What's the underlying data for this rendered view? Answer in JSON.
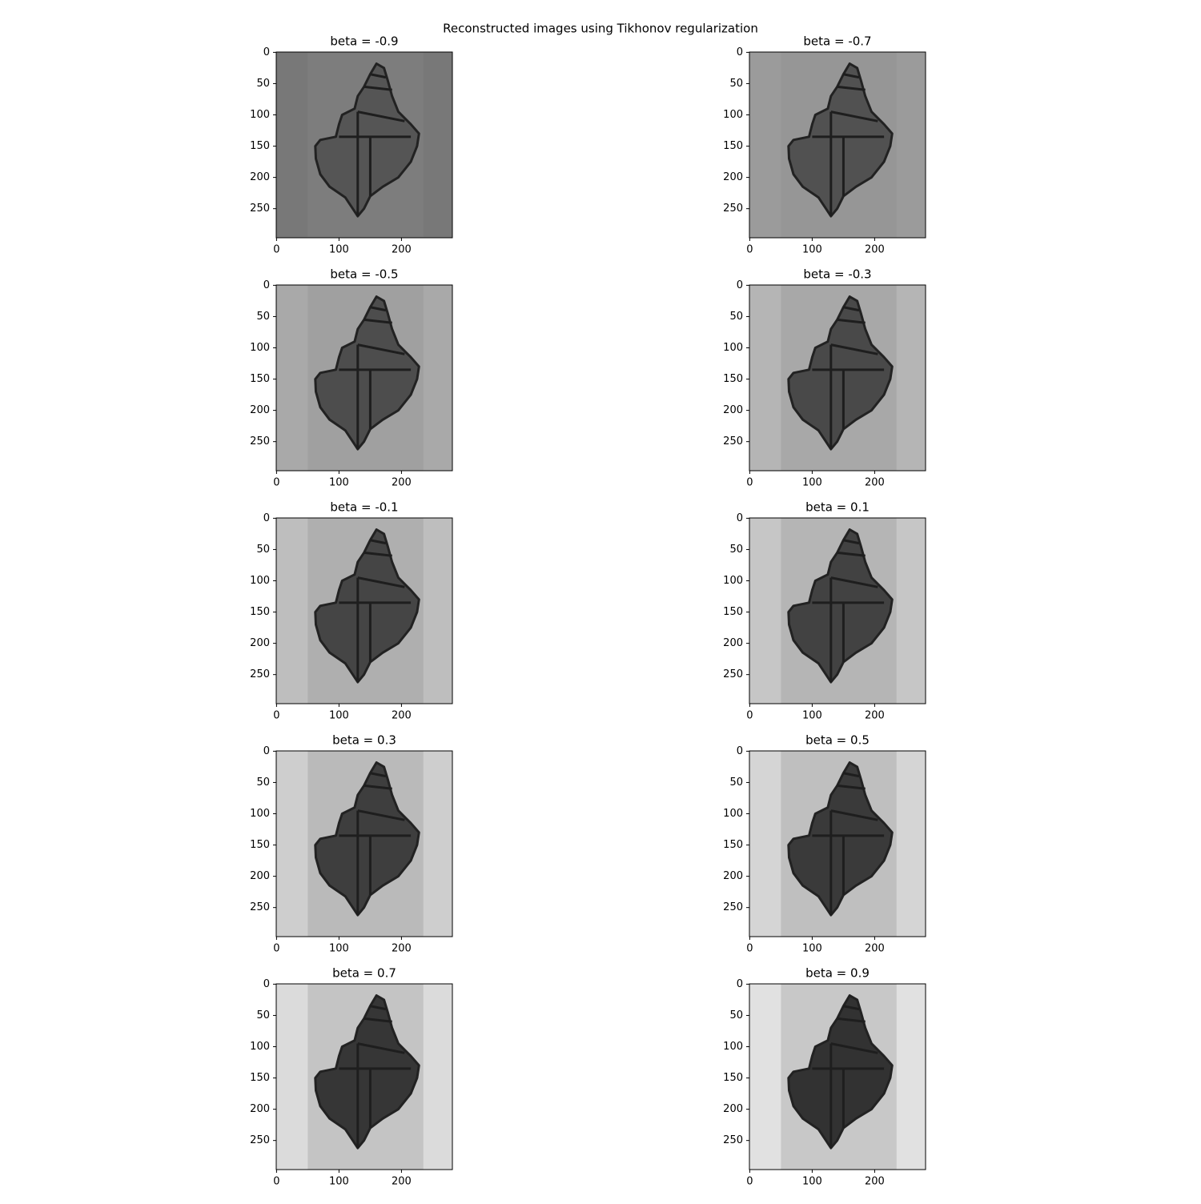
{
  "chart_data": {
    "type": "image",
    "title": "Reconstructed images using Tikhonov regularization",
    "subplots": [
      {
        "title": "beta = -0.9"
      },
      {
        "title": "beta = -0.7"
      },
      {
        "title": "beta = -0.5"
      },
      {
        "title": "beta = -0.3"
      },
      {
        "title": "beta = -0.1"
      },
      {
        "title": "beta = 0.1"
      },
      {
        "title": "beta = 0.3"
      },
      {
        "title": "beta = 0.5"
      },
      {
        "title": "beta = 0.7"
      },
      {
        "title": "beta = 0.9"
      }
    ],
    "xlim": [
      -0.5,
      281.5
    ],
    "ylim": [
      296.5,
      -0.5
    ],
    "xticks": [
      0,
      100,
      200
    ],
    "yticks": [
      0,
      50,
      100,
      150,
      200,
      250
    ]
  }
}
